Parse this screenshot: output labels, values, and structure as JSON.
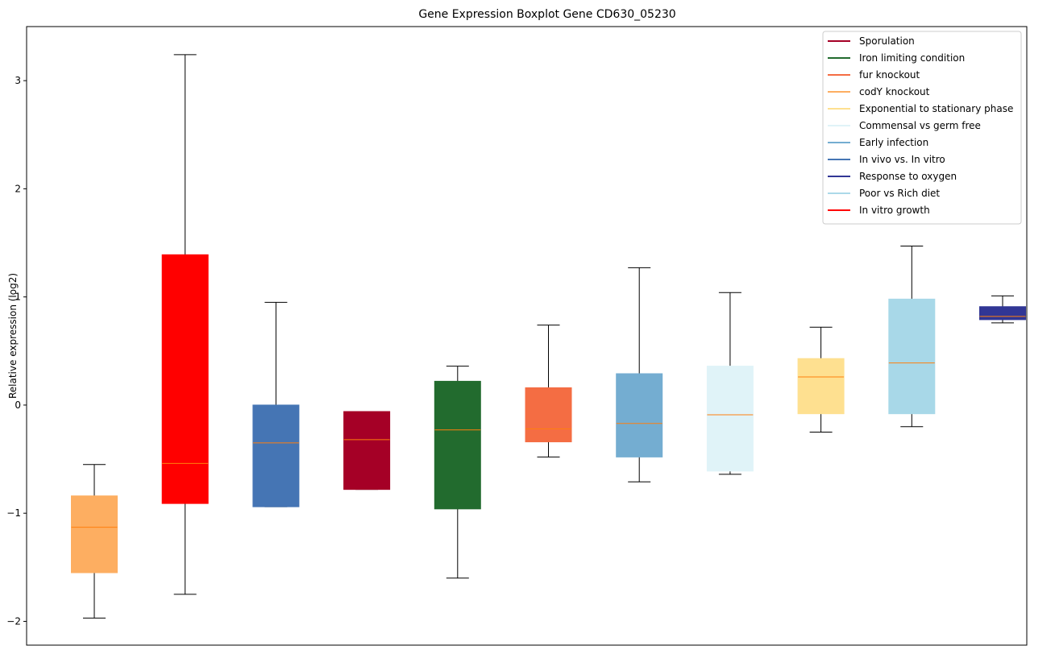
{
  "chart_data": {
    "type": "boxplot",
    "title": "Gene Expression Boxplot Gene CD630_05230",
    "ylabel": "Relative expression (log2)",
    "xlabel": "",
    "ylim": [
      -2.22,
      3.5
    ],
    "yticks": [
      -2,
      -1,
      0,
      1,
      2,
      3
    ],
    "ytick_labels": [
      "−2",
      "−1",
      "0",
      "1",
      "2",
      "3"
    ],
    "median_color": "#ff7f0e",
    "whisker_color": "#000000",
    "legend_position": "top-right",
    "legend": [
      {
        "label": "Sporulation",
        "color": "#a50026"
      },
      {
        "label": "Iron limiting condition",
        "color": "#226b2e"
      },
      {
        "label": "fur knockout",
        "color": "#f46d43"
      },
      {
        "label": "codY knockout",
        "color": "#fdae61"
      },
      {
        "label": "Exponential to stationary phase",
        "color": "#fee090"
      },
      {
        "label": "Commensal vs germ free",
        "color": "#e0f3f8"
      },
      {
        "label": "Early infection",
        "color": "#74add1"
      },
      {
        "label": "In vivo vs. In vitro",
        "color": "#4575b4"
      },
      {
        "label": "Response to oxygen",
        "color": "#313695"
      },
      {
        "label": "Poor vs Rich diet",
        "color": "#abd9e9"
      },
      {
        "label": "In vitro growth",
        "color": "#ff0000"
      }
    ],
    "boxes": [
      {
        "name": "codY knockout",
        "color": "#fdae61",
        "whislo": -1.97,
        "q1": -1.55,
        "med": -1.13,
        "q3": -0.84,
        "whishi": -0.55
      },
      {
        "name": "In vitro growth",
        "color": "#ff0000",
        "whislo": -1.75,
        "q1": -0.91,
        "med": -0.54,
        "q3": 1.39,
        "whishi": 3.24
      },
      {
        "name": "In vivo vs. In vitro",
        "color": "#4575b4",
        "whislo": -0.94,
        "q1": -0.94,
        "med": -0.35,
        "q3": 0.0,
        "whishi": 0.95
      },
      {
        "name": "Sporulation",
        "color": "#a50026",
        "whislo": -0.78,
        "q1": -0.78,
        "med": -0.32,
        "q3": -0.06,
        "whishi": -0.06
      },
      {
        "name": "Iron limiting condition",
        "color": "#226b2e",
        "whislo": -1.6,
        "q1": -0.96,
        "med": -0.23,
        "q3": 0.22,
        "whishi": 0.36
      },
      {
        "name": "fur knockout",
        "color": "#f46d43",
        "whislo": -0.48,
        "q1": -0.34,
        "med": -0.22,
        "q3": 0.16,
        "whishi": 0.74
      },
      {
        "name": "Early infection",
        "color": "#74add1",
        "whislo": -0.71,
        "q1": -0.48,
        "med": -0.17,
        "q3": 0.29,
        "whishi": 1.27
      },
      {
        "name": "Commensal vs germ free",
        "color": "#e0f3f8",
        "whislo": -0.64,
        "q1": -0.61,
        "med": -0.09,
        "q3": 0.36,
        "whishi": 1.04
      },
      {
        "name": "Exponential to stationary phase",
        "color": "#fee090",
        "whislo": -0.25,
        "q1": -0.08,
        "med": 0.26,
        "q3": 0.43,
        "whishi": 0.72
      },
      {
        "name": "Poor vs Rich diet",
        "color": "#a8d8e8",
        "whislo": -0.2,
        "q1": -0.08,
        "med": 0.39,
        "q3": 0.98,
        "whishi": 1.47
      },
      {
        "name": "Response to oxygen",
        "color": "#313695",
        "whislo": 0.76,
        "q1": 0.79,
        "med": 0.82,
        "q3": 0.91,
        "whishi": 1.01
      }
    ]
  }
}
